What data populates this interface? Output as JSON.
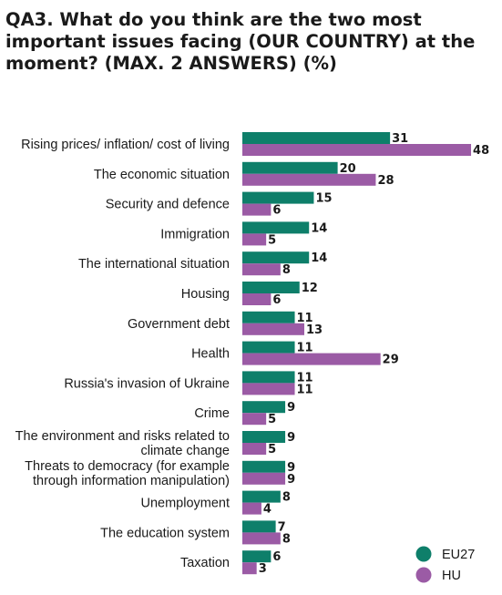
{
  "chart_data": {
    "type": "bar",
    "orientation": "horizontal",
    "title": "QA3. What do you think are the two most important issues facing (OUR COUNTRY) at the moment? (MAX. 2 ANSWERS) (%)",
    "categories": [
      "Rising prices/ inflation/ cost of living",
      "The economic situation",
      "Security and defence",
      "Immigration",
      "The international situation",
      "Housing",
      "Government debt",
      "Health",
      "Russia's invasion of Ukraine",
      "Crime",
      "The environment and risks related to climate change",
      "Threats to democracy (for example through information manipulation)",
      "Unemployment",
      "The education system",
      "Taxation"
    ],
    "category_lines": [
      [
        "Rising prices/ inflation/ cost of living"
      ],
      [
        "The economic situation"
      ],
      [
        "Security and defence"
      ],
      [
        "Immigration"
      ],
      [
        "The international situation"
      ],
      [
        "Housing"
      ],
      [
        "Government debt"
      ],
      [
        "Health"
      ],
      [
        "Russia's invasion of Ukraine"
      ],
      [
        "Crime"
      ],
      [
        "The environment and risks related to",
        "climate change"
      ],
      [
        "Threats to democracy (for example",
        "through information manipulation)"
      ],
      [
        "Unemployment"
      ],
      [
        "The education system"
      ],
      [
        "Taxation"
      ]
    ],
    "series": [
      {
        "name": "EU27",
        "color": "#0e7f6a",
        "values": [
          31,
          20,
          15,
          14,
          14,
          12,
          11,
          11,
          11,
          9,
          9,
          9,
          8,
          7,
          6
        ]
      },
      {
        "name": "HU",
        "color": "#9b5ba5",
        "values": [
          48,
          28,
          6,
          5,
          8,
          6,
          13,
          29,
          11,
          5,
          5,
          9,
          4,
          8,
          3
        ]
      }
    ],
    "xlim": [
      0,
      48
    ],
    "legend": "bottom-right",
    "grid": false
  }
}
